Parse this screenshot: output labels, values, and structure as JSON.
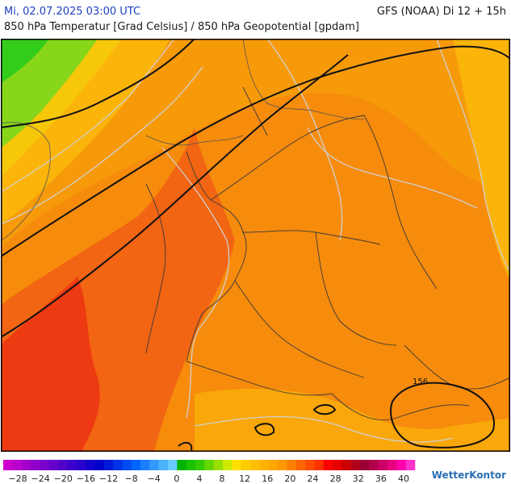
{
  "header": {
    "datetime": "Mi, 02.07.2025 03:00 UTC",
    "model_run": "GFS (NOAA) Di 12 + 15h",
    "title": "850 hPa Temperatur [Grad Celsius] / 850 hPa Geopotential [gpdam]"
  },
  "map": {
    "isohypse_label": "156",
    "colors": {
      "green_bright": "#33cc1a",
      "green_light": "#88d61a",
      "yellow": "#f7c70a",
      "orange_light": "#fbb40a",
      "orange": "#f79a0a",
      "orange_deep": "#f5800e",
      "orange_red": "#f26512",
      "red": "#ee3a12",
      "isohypse": "#111111",
      "isotherm": "#d0d0d0",
      "borders": "#3a3a3a"
    }
  },
  "legend": {
    "tick_labels": [
      "−28",
      "−24",
      "−20",
      "−16",
      "−12",
      "−8",
      "−4",
      "0",
      "4",
      "8",
      "12",
      "16",
      "20",
      "24",
      "28",
      "32",
      "36",
      "40"
    ],
    "swatches": [
      "#cc00cc",
      "#b800cc",
      "#a300cc",
      "#8f00cc",
      "#7a00cc",
      "#6600cc",
      "#5200cc",
      "#3d00cc",
      "#2900cc",
      "#1400cc",
      "#0000cc",
      "#0019d9",
      "#0033e6",
      "#004cf2",
      "#0066ff",
      "#1a7fff",
      "#3399ff",
      "#4cb3ff",
      "#66ccff",
      "#00b300",
      "#19c200",
      "#33cc00",
      "#66d600",
      "#99e000",
      "#ccea00",
      "#ffdf00",
      "#ffcc00",
      "#ffbf00",
      "#ffb300",
      "#ffa600",
      "#ff9900",
      "#ff8000",
      "#ff6600",
      "#ff4c00",
      "#ff3300",
      "#ff0000",
      "#e60000",
      "#cc0000",
      "#b3001a",
      "#990033",
      "#b3004c",
      "#cc0066",
      "#e60080",
      "#ff00aa",
      "#ff33cc"
    ],
    "brand": "WetterKontor"
  }
}
